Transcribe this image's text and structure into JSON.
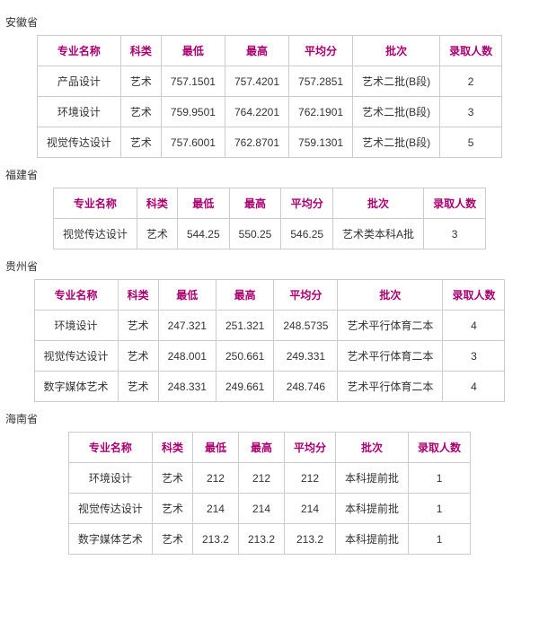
{
  "headers": [
    "专业名称",
    "科类",
    "最低",
    "最高",
    "平均分",
    "批次",
    "录取人数"
  ],
  "header_color": "#a6006f",
  "border_color": "#cccccc",
  "sections": [
    {
      "province": "安徽省",
      "rows": [
        [
          "产品设计",
          "艺术",
          "757.1501",
          "757.4201",
          "757.2851",
          "艺术二批(B段)",
          "2"
        ],
        [
          "环境设计",
          "艺术",
          "759.9501",
          "764.2201",
          "762.1901",
          "艺术二批(B段)",
          "3"
        ],
        [
          "视觉传达设计",
          "艺术",
          "757.6001",
          "762.8701",
          "759.1301",
          "艺术二批(B段)",
          "5"
        ]
      ]
    },
    {
      "province": "福建省",
      "rows": [
        [
          "视觉传达设计",
          "艺术",
          "544.25",
          "550.25",
          "546.25",
          "艺术类本科A批",
          "3"
        ]
      ]
    },
    {
      "province": "贵州省",
      "rows": [
        [
          "环境设计",
          "艺术",
          "247.321",
          "251.321",
          "248.5735",
          "艺术平行体育二本",
          "4"
        ],
        [
          "视觉传达设计",
          "艺术",
          "248.001",
          "250.661",
          "249.331",
          "艺术平行体育二本",
          "3"
        ],
        [
          "数字媒体艺术",
          "艺术",
          "248.331",
          "249.661",
          "248.746",
          "艺术平行体育二本",
          "4"
        ]
      ]
    },
    {
      "province": "海南省",
      "rows": [
        [
          "环境设计",
          "艺术",
          "212",
          "212",
          "212",
          "本科提前批",
          "1"
        ],
        [
          "视觉传达设计",
          "艺术",
          "214",
          "214",
          "214",
          "本科提前批",
          "1"
        ],
        [
          "数字媒体艺术",
          "艺术",
          "213.2",
          "213.2",
          "213.2",
          "本科提前批",
          "1"
        ]
      ]
    }
  ]
}
